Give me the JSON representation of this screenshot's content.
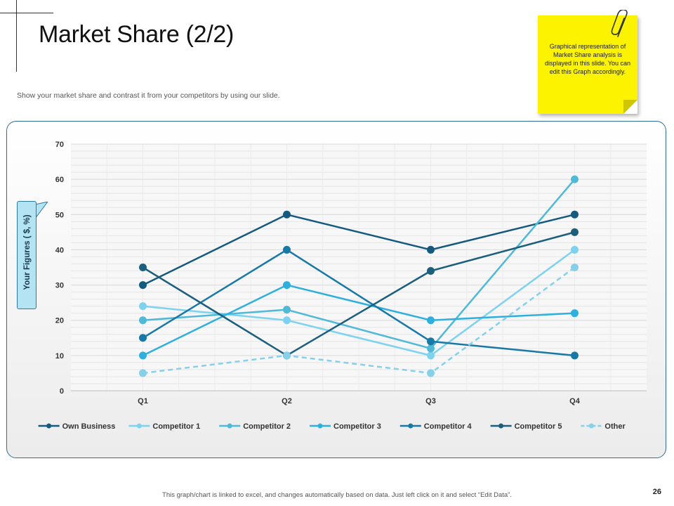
{
  "slide": {
    "title": "Market Share (2/2)",
    "subtitle": "Show your market share and contrast it from your competitors by using our slide.",
    "note": "Graphical representation of Market Share analysis is displayed in this slide. You can edit this Graph accordingly.",
    "footer": "This graph/chart is linked to excel, and changes automatically based on data. Just left click on it and select “Edit Data”.",
    "page_number": "26",
    "colors": {
      "note": "#fbf300",
      "panel_border": "#2f6e95"
    }
  },
  "chart_data": {
    "type": "line",
    "title": "",
    "xlabel": "",
    "ylabel": "Your Figures ( $, %)",
    "categories": [
      "Q1",
      "Q2",
      "Q3",
      "Q4"
    ],
    "ylim": [
      0,
      70
    ],
    "yticks": [
      0,
      10,
      20,
      30,
      40,
      50,
      60,
      70
    ],
    "grid": true,
    "legend_position": "bottom",
    "series": [
      {
        "name": "Own Business",
        "values": [
          30,
          50,
          40,
          50
        ],
        "color": "#14597e",
        "dashed": false
      },
      {
        "name": "Competitor 1",
        "values": [
          24,
          20,
          10,
          40
        ],
        "color": "#7dd3ef",
        "dashed": false
      },
      {
        "name": "Competitor 2",
        "values": [
          20,
          23,
          12,
          60
        ],
        "color": "#4fb9d8",
        "dashed": false
      },
      {
        "name": "Competitor 3",
        "values": [
          10,
          30,
          20,
          22
        ],
        "color": "#2eb0de",
        "dashed": false
      },
      {
        "name": "Competitor 4",
        "values": [
          15,
          40,
          14,
          10
        ],
        "color": "#1979a6",
        "dashed": false
      },
      {
        "name": "Competitor 5",
        "values": [
          35,
          10,
          34,
          45
        ],
        "color": "#1c5f7d",
        "dashed": false
      },
      {
        "name": "Other",
        "values": [
          5,
          10,
          5,
          35
        ],
        "color": "#86d0ea",
        "dashed": true
      }
    ]
  }
}
